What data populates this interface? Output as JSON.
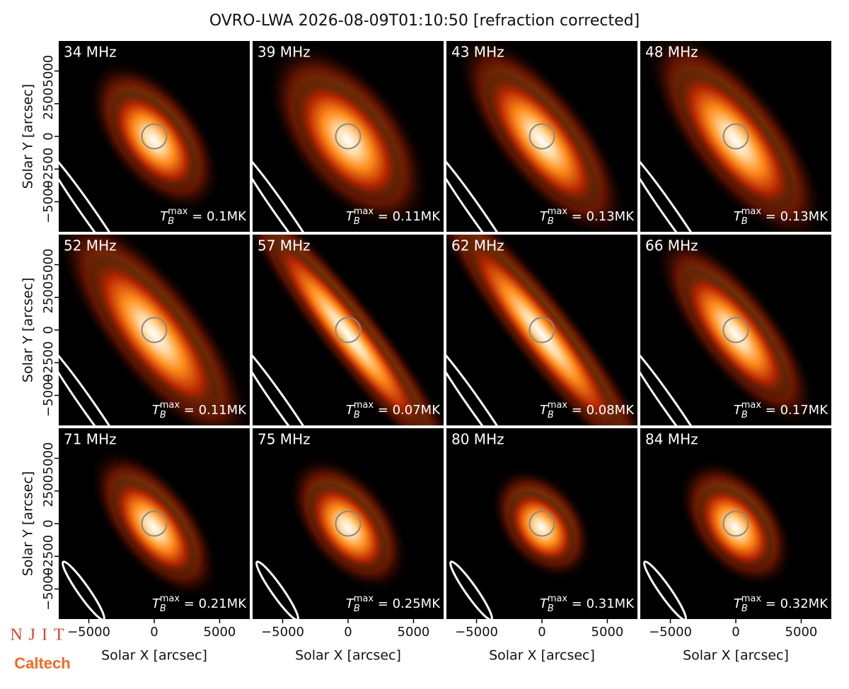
{
  "chart_data": {
    "type": "image",
    "title": "OVRO-LWA 2026-08-09T01:10:50 [refraction corrected]",
    "xlabel": "Solar X [arcsec]",
    "ylabel": "Solar Y [arcsec]",
    "xlim": [
      -7300,
      7300
    ],
    "ylim": [
      -7300,
      7300
    ],
    "xticks": [
      {
        "value": -5000,
        "label": "−5000"
      },
      0,
      5000
    ],
    "yticks": [
      {
        "value": -5000,
        "label": "−5000"
      },
      {
        "value": -2500,
        "label": "−2500"
      },
      0,
      2500,
      5000
    ],
    "panels": [
      "34 MHz",
      "39 MHz",
      "43 MHz",
      "48 MHz",
      "52 MHz",
      "57 MHz",
      "62 MHz",
      "66 MHz",
      "71 MHz",
      "75 MHz",
      "80 MHz",
      "84 MHz"
    ],
    "values": [
      0.1,
      0.11,
      0.13,
      0.13,
      0.11,
      0.07,
      0.08,
      0.17,
      0.21,
      0.25,
      0.31,
      0.32
    ],
    "value_labels": [
      "T_B^max = 0.1MK",
      "T_B^max = 0.11MK",
      "T_B^max = 0.13MK",
      "T_B^max = 0.13MK",
      "T_B^max = 0.11MK",
      "T_B^max = 0.07MK",
      "T_B^max = 0.08MK",
      "T_B^max = 0.17MK",
      "T_B^max = 0.21MK",
      "T_B^max = 0.25MK",
      "T_B^max = 0.31MK",
      "T_B^max = 0.32MK"
    ]
  },
  "logos": [
    "NJIT",
    "Caltech"
  ]
}
